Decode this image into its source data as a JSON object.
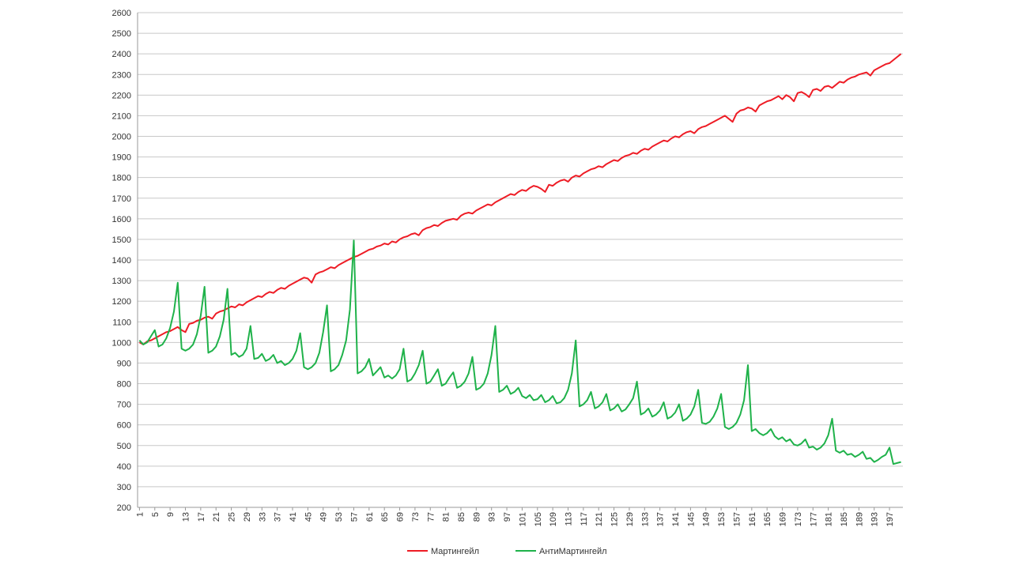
{
  "chart_data": {
    "type": "line",
    "x": [
      1,
      2,
      3,
      4,
      5,
      6,
      7,
      8,
      9,
      10,
      11,
      12,
      13,
      14,
      15,
      16,
      17,
      18,
      19,
      20,
      21,
      22,
      23,
      24,
      25,
      26,
      27,
      28,
      29,
      30,
      31,
      32,
      33,
      34,
      35,
      36,
      37,
      38,
      39,
      40,
      41,
      42,
      43,
      44,
      45,
      46,
      47,
      48,
      49,
      50,
      51,
      52,
      53,
      54,
      55,
      56,
      57,
      58,
      59,
      60,
      61,
      62,
      63,
      64,
      65,
      66,
      67,
      68,
      69,
      70,
      71,
      72,
      73,
      74,
      75,
      76,
      77,
      78,
      79,
      80,
      81,
      82,
      83,
      84,
      85,
      86,
      87,
      88,
      89,
      90,
      91,
      92,
      93,
      94,
      95,
      96,
      97,
      98,
      99,
      100,
      101,
      102,
      103,
      104,
      105,
      106,
      107,
      108,
      109,
      110,
      111,
      112,
      113,
      114,
      115,
      116,
      117,
      118,
      119,
      120,
      121,
      122,
      123,
      124,
      125,
      126,
      127,
      128,
      129,
      130,
      131,
      132,
      133,
      134,
      135,
      136,
      137,
      138,
      139,
      140,
      141,
      142,
      143,
      144,
      145,
      146,
      147,
      148,
      149,
      150,
      151,
      152,
      153,
      154,
      155,
      156,
      157,
      158,
      159,
      160,
      161,
      162,
      163,
      164,
      165,
      166,
      167,
      168,
      169,
      170,
      171,
      172,
      173,
      174,
      175,
      176,
      177,
      178,
      179,
      180,
      181,
      182,
      183,
      184,
      185,
      186,
      187,
      188,
      189,
      190,
      191,
      192,
      193,
      194,
      195,
      196,
      197,
      198,
      199,
      200
    ],
    "xlim": [
      0.5,
      200.5
    ],
    "xticks": [
      1,
      5,
      9,
      13,
      17,
      21,
      25,
      29,
      33,
      37,
      41,
      45,
      49,
      53,
      57,
      61,
      65,
      69,
      73,
      77,
      81,
      85,
      89,
      93,
      97,
      101,
      105,
      109,
      113,
      117,
      121,
      125,
      129,
      133,
      137,
      141,
      145,
      149,
      153,
      157,
      161,
      165,
      169,
      173,
      177,
      181,
      185,
      189,
      193,
      197
    ],
    "ylim": [
      200,
      2600
    ],
    "yticks": [
      200,
      300,
      400,
      500,
      600,
      700,
      800,
      900,
      1000,
      1100,
      1200,
      1300,
      1400,
      1500,
      1600,
      1700,
      1800,
      1900,
      2000,
      2100,
      2200,
      2300,
      2400,
      2500,
      2600
    ],
    "grid": true,
    "legend": "bottom",
    "series": [
      {
        "name": "Мартингейл",
        "color": "#ee1c25",
        "values": [
          1000,
          990,
          1005,
          1010,
          1020,
          1030,
          1040,
          1050,
          1055,
          1065,
          1075,
          1060,
          1050,
          1090,
          1095,
          1105,
          1110,
          1120,
          1125,
          1115,
          1140,
          1150,
          1155,
          1165,
          1175,
          1170,
          1185,
          1180,
          1195,
          1205,
          1215,
          1225,
          1220,
          1235,
          1245,
          1240,
          1255,
          1265,
          1260,
          1275,
          1285,
          1295,
          1305,
          1315,
          1310,
          1290,
          1330,
          1340,
          1345,
          1355,
          1365,
          1360,
          1375,
          1385,
          1395,
          1405,
          1415,
          1420,
          1430,
          1440,
          1450,
          1455,
          1465,
          1470,
          1480,
          1475,
          1490,
          1485,
          1500,
          1510,
          1515,
          1525,
          1530,
          1520,
          1545,
          1555,
          1560,
          1570,
          1565,
          1580,
          1590,
          1595,
          1600,
          1595,
          1615,
          1625,
          1630,
          1625,
          1640,
          1650,
          1660,
          1670,
          1665,
          1680,
          1690,
          1700,
          1710,
          1720,
          1715,
          1730,
          1740,
          1735,
          1750,
          1760,
          1755,
          1745,
          1730,
          1765,
          1760,
          1775,
          1785,
          1790,
          1780,
          1800,
          1810,
          1805,
          1820,
          1830,
          1840,
          1845,
          1855,
          1850,
          1865,
          1875,
          1885,
          1880,
          1895,
          1905,
          1910,
          1920,
          1915,
          1930,
          1940,
          1935,
          1950,
          1960,
          1970,
          1980,
          1975,
          1990,
          2000,
          1995,
          2010,
          2020,
          2025,
          2015,
          2035,
          2045,
          2050,
          2060,
          2070,
          2080,
          2090,
          2100,
          2085,
          2070,
          2110,
          2125,
          2130,
          2140,
          2135,
          2120,
          2150,
          2160,
          2170,
          2175,
          2185,
          2195,
          2180,
          2200,
          2190,
          2170,
          2210,
          2215,
          2205,
          2190,
          2225,
          2230,
          2220,
          2240,
          2245,
          2235,
          2250,
          2265,
          2260,
          2275,
          2285,
          2290,
          2300,
          2305,
          2310,
          2295,
          2320,
          2330,
          2340,
          2350,
          2355,
          2370,
          2385,
          2400
        ]
      },
      {
        "name": "АнтиМартингейл",
        "color": "#1fb24a",
        "values": [
          1010,
          990,
          1000,
          1030,
          1060,
          980,
          990,
          1020,
          1070,
          1150,
          1290,
          970,
          960,
          970,
          990,
          1040,
          1130,
          1270,
          950,
          960,
          980,
          1030,
          1110,
          1260,
          940,
          950,
          930,
          940,
          970,
          1080,
          920,
          925,
          945,
          910,
          920,
          940,
          900,
          910,
          890,
          900,
          920,
          960,
          1045,
          880,
          870,
          880,
          900,
          950,
          1050,
          1180,
          860,
          870,
          890,
          940,
          1010,
          1160,
          1495,
          850,
          860,
          880,
          920,
          840,
          860,
          880,
          830,
          840,
          825,
          840,
          870,
          970,
          810,
          820,
          850,
          890,
          960,
          800,
          810,
          840,
          870,
          790,
          800,
          830,
          855,
          780,
          790,
          810,
          850,
          930,
          770,
          780,
          800,
          850,
          940,
          1080,
          760,
          770,
          790,
          750,
          760,
          780,
          740,
          730,
          745,
          720,
          725,
          745,
          710,
          720,
          740,
          705,
          710,
          730,
          770,
          850,
          1010,
          690,
          700,
          720,
          760,
          680,
          690,
          710,
          750,
          670,
          680,
          700,
          665,
          675,
          700,
          730,
          810,
          650,
          660,
          680,
          640,
          650,
          670,
          710,
          630,
          640,
          660,
          700,
          620,
          630,
          650,
          690,
          770,
          610,
          605,
          615,
          640,
          680,
          750,
          590,
          580,
          590,
          610,
          650,
          720,
          890,
          570,
          580,
          560,
          550,
          560,
          580,
          545,
          530,
          540,
          520,
          530,
          505,
          500,
          510,
          530,
          490,
          495,
          480,
          490,
          510,
          550,
          630,
          475,
          465,
          475,
          455,
          460,
          445,
          455,
          470,
          435,
          440,
          420,
          430,
          445,
          455,
          490,
          410,
          415,
          420
        ]
      }
    ]
  }
}
